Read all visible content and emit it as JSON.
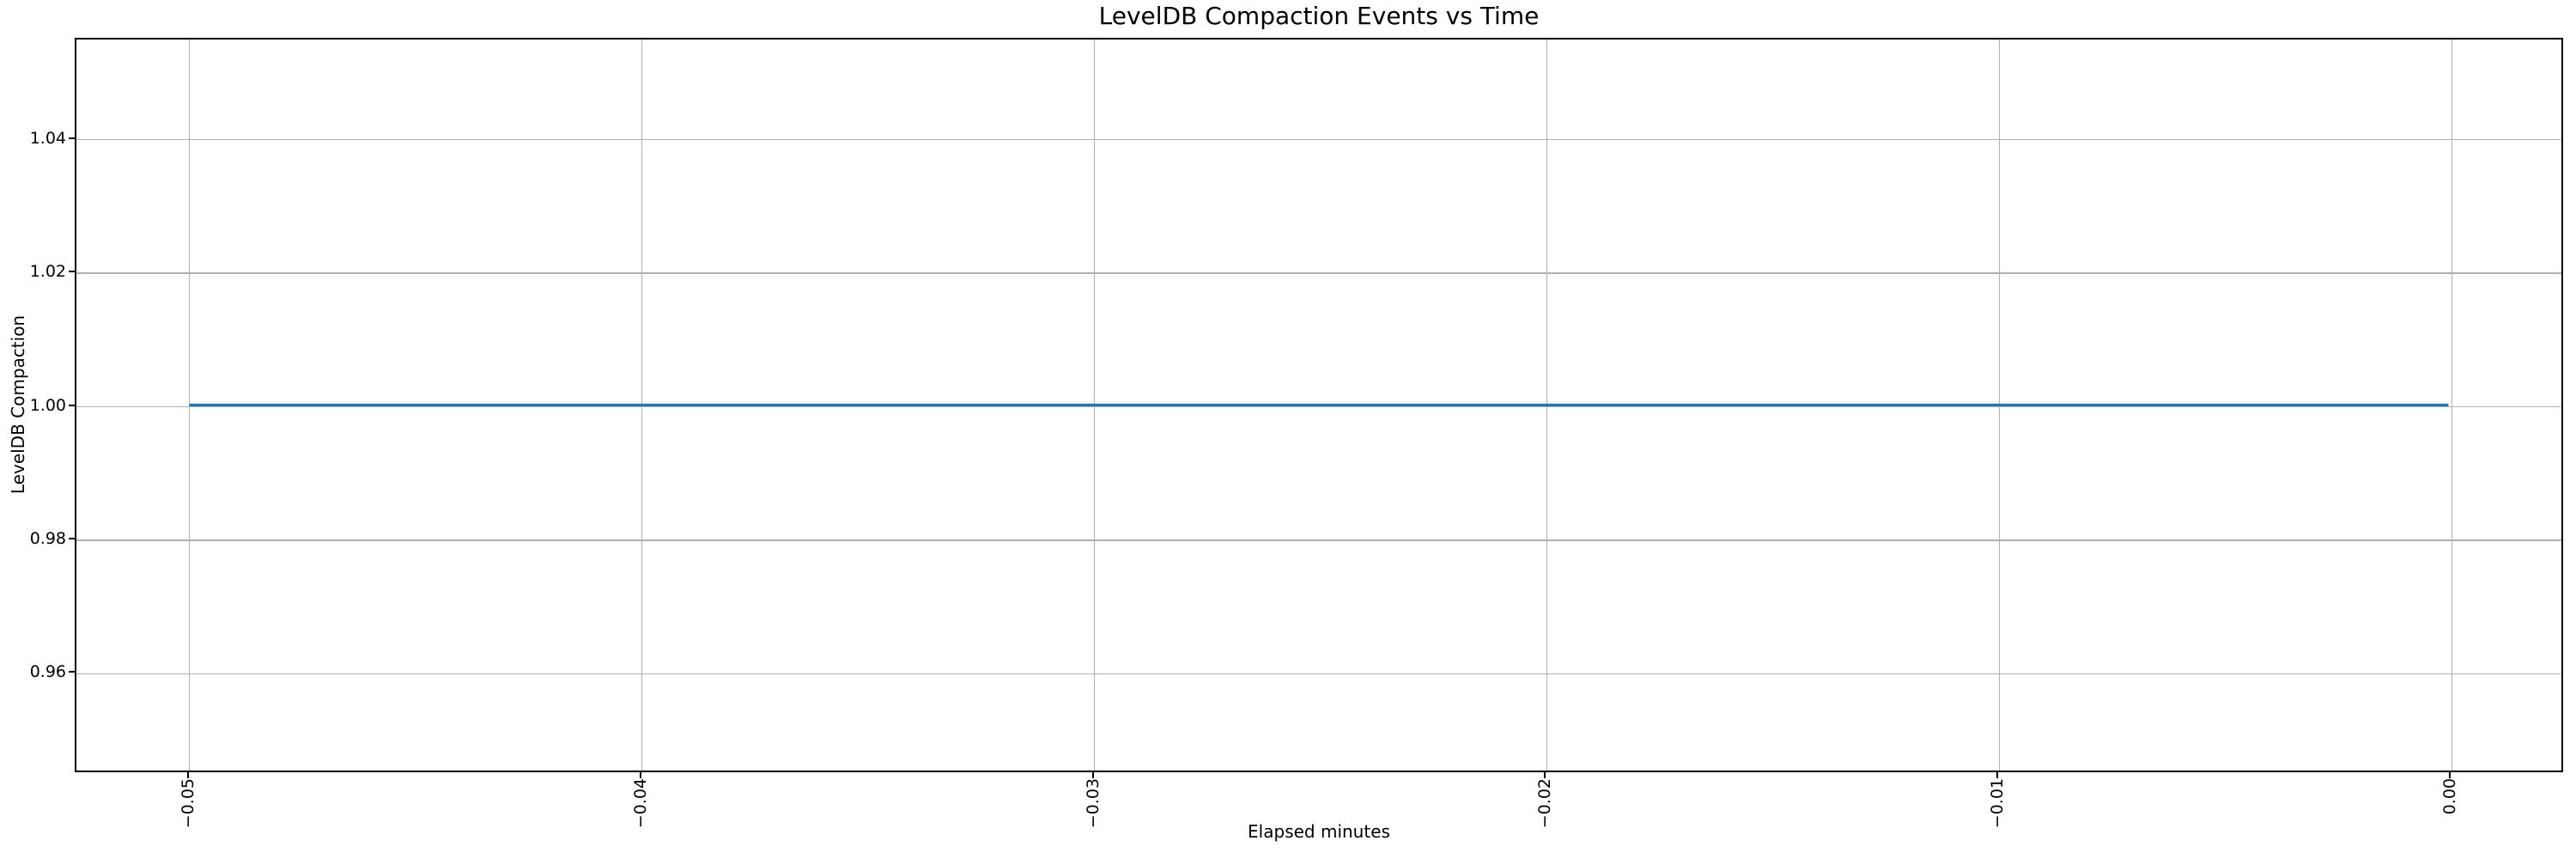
{
  "chart_data": {
    "type": "line",
    "title": "LevelDB Compaction Events vs Time",
    "xlabel": "Elapsed minutes",
    "ylabel": "LevelDB Compaction",
    "series": [
      {
        "name": "LevelDB Compaction",
        "x": [
          -0.05,
          0.0
        ],
        "y": [
          1.0,
          1.0
        ],
        "color": "#1f77b4",
        "linewidth": 3.2
      }
    ],
    "xlim": [
      -0.0525,
      0.0025
    ],
    "ylim": [
      0.945,
      1.055
    ],
    "xticks": {
      "values": [
        -0.05,
        -0.04,
        -0.03,
        -0.02,
        -0.01,
        0.0
      ],
      "labels": [
        "−0.05",
        "−0.04",
        "−0.03",
        "−0.02",
        "−0.01",
        "0.00"
      ],
      "rotation": 90
    },
    "yticks": {
      "values": [
        0.96,
        0.98,
        1.0,
        1.02,
        1.04
      ],
      "labels": [
        "0.96",
        "0.98",
        "1.00",
        "1.02",
        "1.04"
      ]
    },
    "grid": true,
    "legend": null,
    "colors": {
      "line": "#1f77b4",
      "grid": "#b0b0b0",
      "spine": "#000000",
      "text": "#000000",
      "background": "#ffffff"
    }
  }
}
